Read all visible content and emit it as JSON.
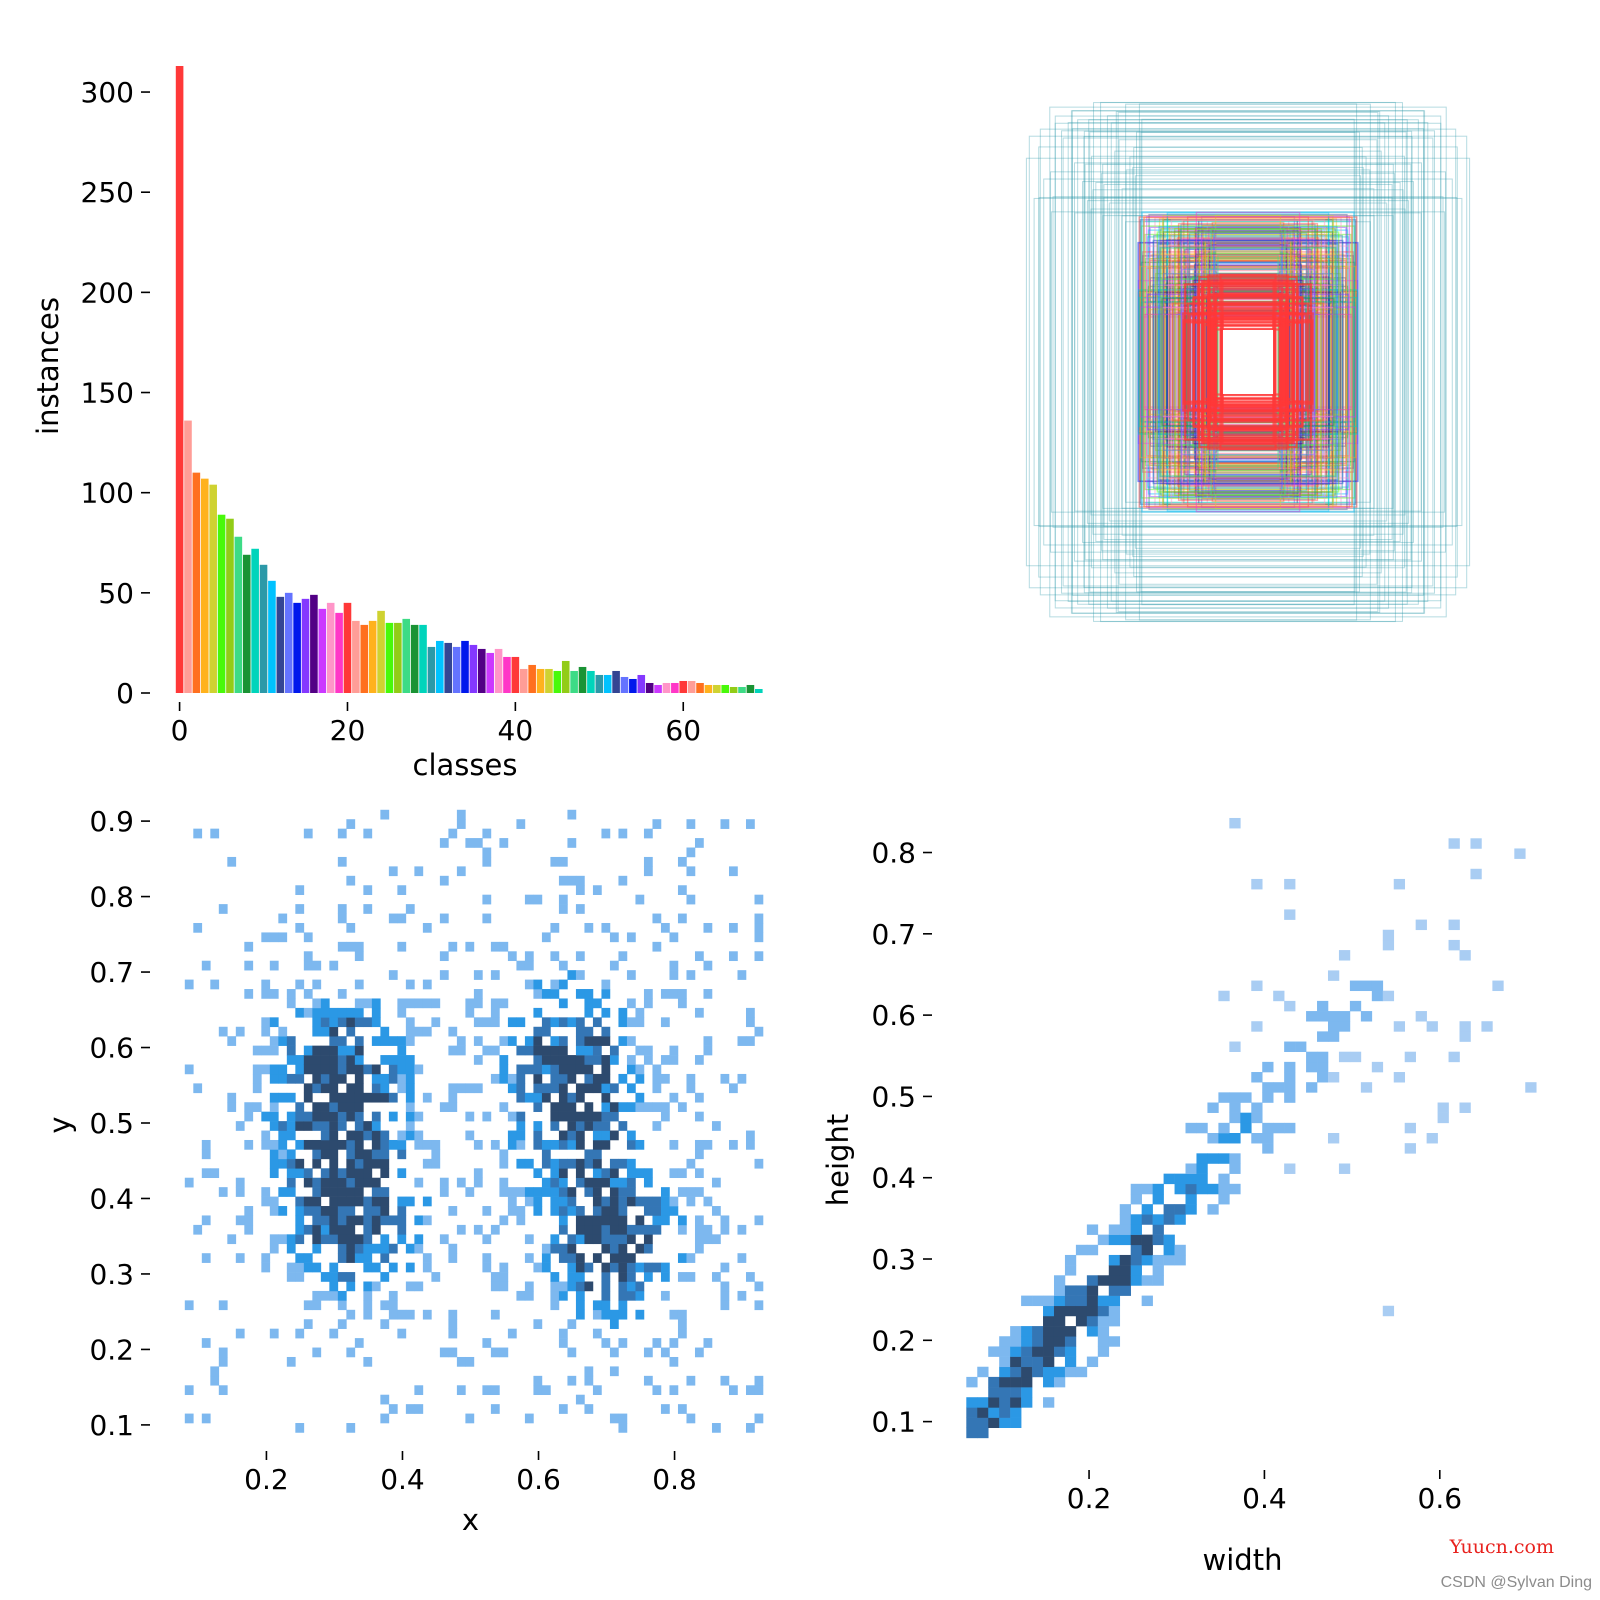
{
  "chart_data": [
    {
      "id": "classes-histogram",
      "type": "bar",
      "xlabel": "classes",
      "ylabel": "instances",
      "xlim": [
        -1.5,
        69.5
      ],
      "ylim": [
        0,
        315
      ],
      "xticks": [
        0,
        20,
        40,
        60
      ],
      "yticks": [
        0,
        50,
        100,
        150,
        200,
        250,
        300
      ],
      "categories": [
        0,
        1,
        2,
        3,
        4,
        5,
        6,
        7,
        8,
        9,
        10,
        11,
        12,
        13,
        14,
        15,
        16,
        17,
        18,
        19,
        20,
        21,
        22,
        23,
        24,
        25,
        26,
        27,
        28,
        29,
        30,
        31,
        32,
        33,
        34,
        35,
        36,
        37,
        38,
        39,
        40,
        41,
        42,
        43,
        44,
        45,
        46,
        47,
        48,
        49,
        50,
        51,
        52,
        53,
        54,
        55,
        56,
        57,
        58,
        59,
        60,
        61,
        62,
        63,
        64,
        65,
        66,
        67,
        68,
        69
      ],
      "values": [
        313,
        136,
        110,
        107,
        104,
        89,
        87,
        78,
        69,
        72,
        64,
        56,
        48,
        50,
        45,
        47,
        49,
        42,
        45,
        40,
        45,
        36,
        34,
        36,
        41,
        35,
        35,
        37,
        34,
        34,
        23,
        26,
        25,
        23,
        26,
        24,
        22,
        20,
        22,
        18,
        18,
        12,
        14,
        12,
        12,
        11,
        16,
        11,
        13,
        11,
        9,
        9,
        11,
        8,
        7,
        9,
        5,
        4,
        5,
        5,
        6,
        6,
        5,
        4,
        4,
        4,
        3,
        3,
        4,
        2
      ],
      "colors": [
        "#ff3838",
        "#ff9d97",
        "#ff701f",
        "#ffb21d",
        "#cfd231",
        "#48f90a",
        "#92cc17",
        "#3ddb86",
        "#1a9334",
        "#00d4bb",
        "#2c99a8",
        "#00c2ff",
        "#344593",
        "#6473ff",
        "#0018ec",
        "#8438ff",
        "#520085",
        "#cb38ff",
        "#ff95c8",
        "#ff37c7"
      ]
    },
    {
      "id": "boxes-overlay",
      "type": "other",
      "description_none": ""
    },
    {
      "id": "xy-histogram",
      "type": "heatmap",
      "xlabel": "x",
      "ylabel": "y",
      "xlim": [
        0.07,
        0.93
      ],
      "ylim": [
        0.08,
        0.92
      ],
      "xticks": [
        0.2,
        0.4,
        0.6,
        0.8
      ],
      "yticks": [
        0.1,
        0.2,
        0.3,
        0.4,
        0.5,
        0.6,
        0.7,
        0.8,
        0.9
      ],
      "clusters": [
        {
          "cx": 0.3,
          "cy": 0.55,
          "sx": 0.07,
          "sy": 0.09
        },
        {
          "cx": 0.32,
          "cy": 0.37,
          "sx": 0.07,
          "sy": 0.07
        },
        {
          "cx": 0.64,
          "cy": 0.55,
          "sx": 0.07,
          "sy": 0.09
        },
        {
          "cx": 0.7,
          "cy": 0.34,
          "sx": 0.07,
          "sy": 0.08
        }
      ]
    },
    {
      "id": "wh-histogram",
      "type": "heatmap",
      "xlabel": "width",
      "ylabel": "height",
      "xlim": [
        0.03,
        0.72
      ],
      "ylim": [
        0.07,
        0.84
      ],
      "xticks": [
        0.2,
        0.4,
        0.6
      ],
      "yticks": [
        0.1,
        0.2,
        0.3,
        0.4,
        0.5,
        0.6,
        0.7,
        0.8
      ]
    }
  ],
  "watermarks": {
    "site": "Yuucn.com",
    "author": "CSDN @Sylvan Ding"
  }
}
